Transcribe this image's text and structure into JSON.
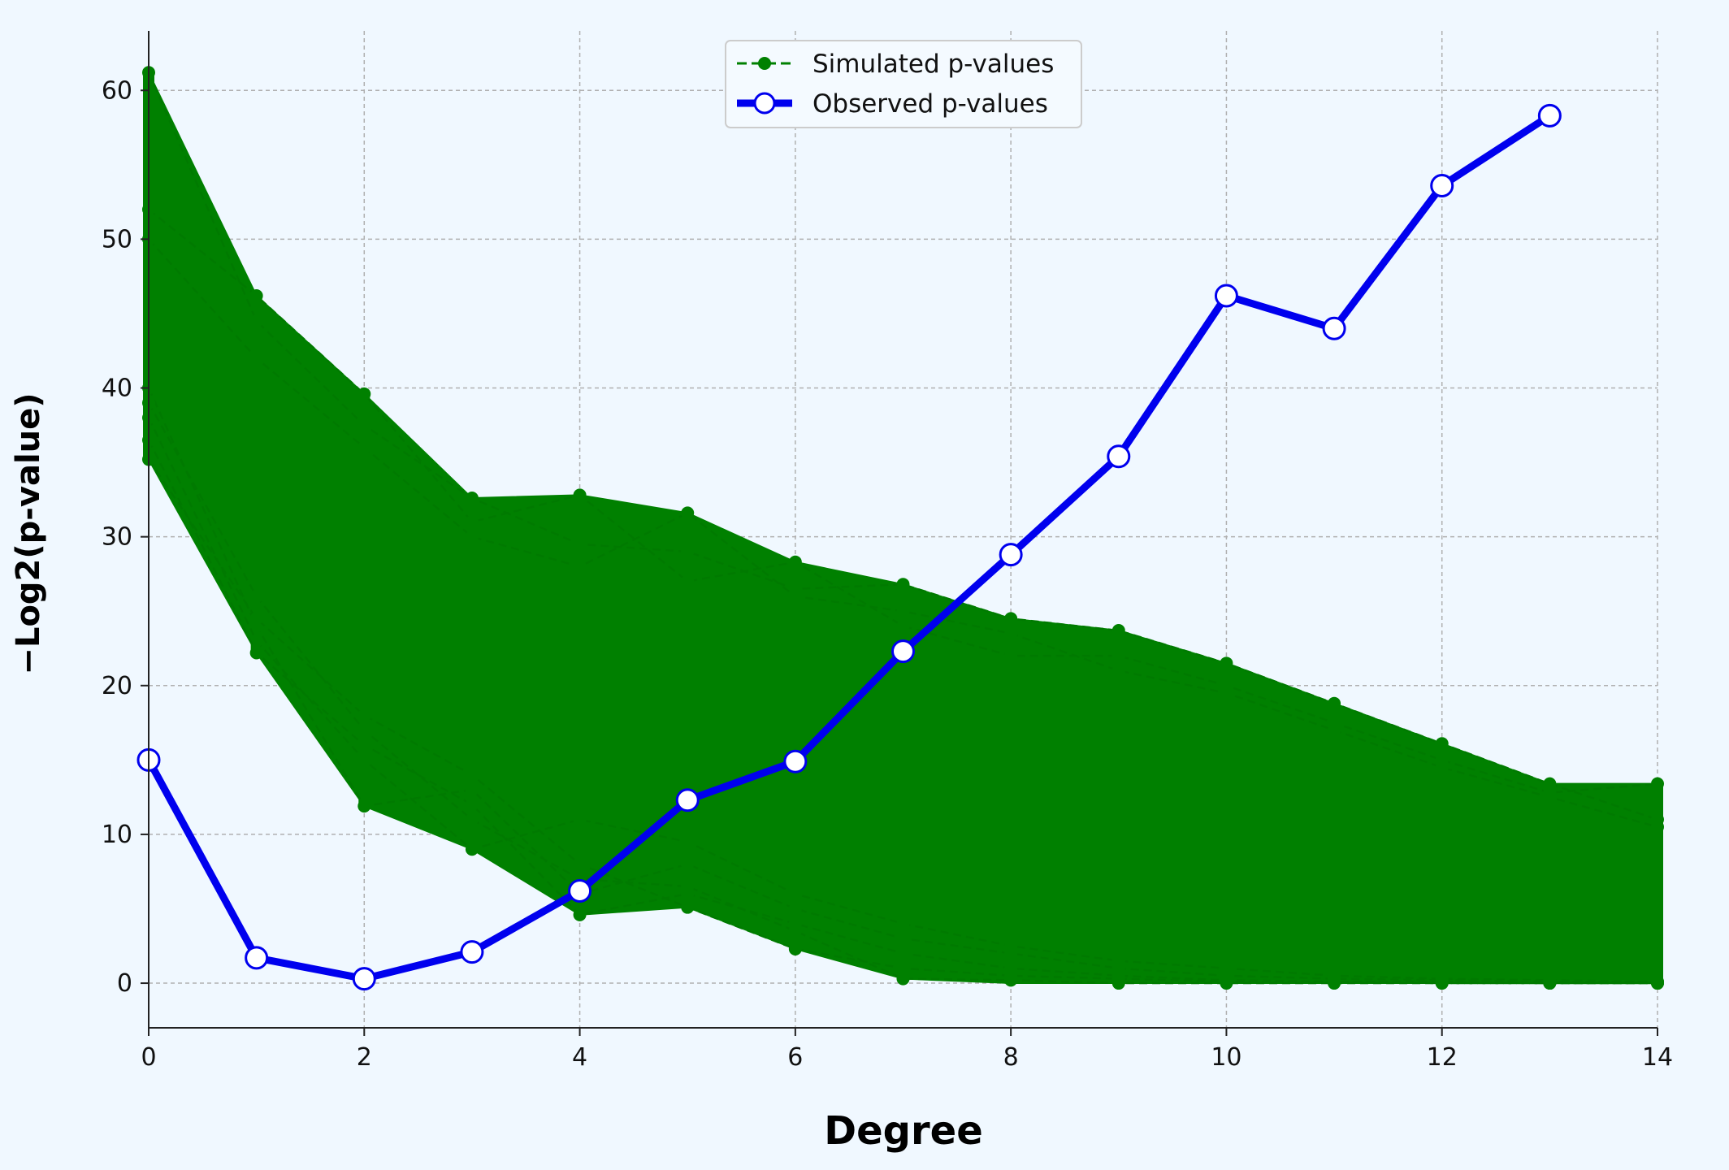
{
  "chart_data": {
    "type": "line",
    "xlabel": "Degree",
    "ylabel": "−Log2(p-value)",
    "xlim": [
      0,
      14
    ],
    "ylim": [
      -3,
      64
    ],
    "x_ticks": [
      0,
      2,
      4,
      6,
      8,
      10,
      12,
      14
    ],
    "y_ticks": [
      0,
      10,
      20,
      30,
      40,
      50,
      60
    ],
    "grid": true,
    "legend_position": "top-center",
    "legend": [
      "Simulated p-values",
      "Observed p-values"
    ],
    "series": [
      {
        "name": "Observed p-values",
        "color": "#0000ee",
        "x": [
          0,
          1,
          2,
          3,
          4,
          5,
          6,
          7,
          8,
          9,
          10,
          11,
          12,
          13
        ],
        "values": [
          15.0,
          1.7,
          0.3,
          2.1,
          6.2,
          12.3,
          14.9,
          22.3,
          28.8,
          35.4,
          46.2,
          44.0,
          53.6,
          58.3
        ]
      },
      {
        "name": "Simulated p-values",
        "color": "#008000",
        "x": [
          0,
          1,
          2,
          3,
          4,
          5,
          6,
          7,
          8,
          9,
          10,
          11,
          12,
          13,
          14
        ],
        "envelope_max": [
          61.2,
          46.2,
          39.6,
          32.6,
          32.8,
          31.6,
          28.3,
          26.8,
          24.5,
          23.7,
          21.5,
          18.8,
          16.1,
          13.4,
          13.4
        ],
        "envelope_min": [
          35.2,
          22.2,
          11.9,
          9.0,
          4.6,
          5.1,
          2.3,
          0.3,
          0.0,
          0.0,
          0.0,
          0.0,
          0.0,
          0.0,
          0.0
        ],
        "highlighted_runs": [
          [
            61.2,
            44.5,
            37.5,
            32.6,
            29.5,
            29.0,
            26.5,
            26.8,
            24.5,
            23.7,
            21.5,
            18.8,
            16.1,
            13.4,
            11.0
          ],
          [
            52.0,
            46.2,
            39.6,
            31.0,
            32.8,
            27.0,
            28.3,
            24.0,
            22.0,
            22.0,
            20.0,
            17.5,
            15.0,
            12.8,
            13.4
          ],
          [
            50.0,
            42.0,
            36.0,
            30.0,
            28.0,
            31.6,
            26.0,
            25.0,
            23.5,
            21.0,
            19.5,
            17.0,
            14.5,
            12.5,
            10.5
          ],
          [
            40.0,
            24.0,
            11.9,
            13.0,
            6.0,
            8.0,
            5.0,
            3.0,
            2.0,
            1.0,
            0.5,
            0.3,
            0.2,
            0.1,
            0.1
          ],
          [
            38.0,
            23.0,
            15.0,
            9.0,
            11.0,
            9.5,
            6.0,
            4.0,
            2.5,
            1.5,
            1.0,
            0.5,
            0.3,
            0.2,
            0.1
          ],
          [
            36.5,
            22.2,
            16.0,
            12.0,
            4.6,
            6.0,
            4.0,
            2.0,
            1.0,
            0.5,
            0.2,
            0.1,
            0.1,
            0.0,
            0.0
          ],
          [
            35.2,
            24.5,
            18.0,
            14.0,
            8.0,
            5.1,
            2.3,
            1.0,
            0.5,
            0.3,
            0.1,
            0.1,
            0.0,
            0.0,
            0.0
          ],
          [
            39.0,
            26.0,
            17.0,
            11.0,
            7.0,
            6.5,
            3.5,
            0.3,
            0.2,
            0.0,
            0.0,
            0.0,
            0.0,
            0.0,
            0.0
          ]
        ]
      }
    ]
  }
}
